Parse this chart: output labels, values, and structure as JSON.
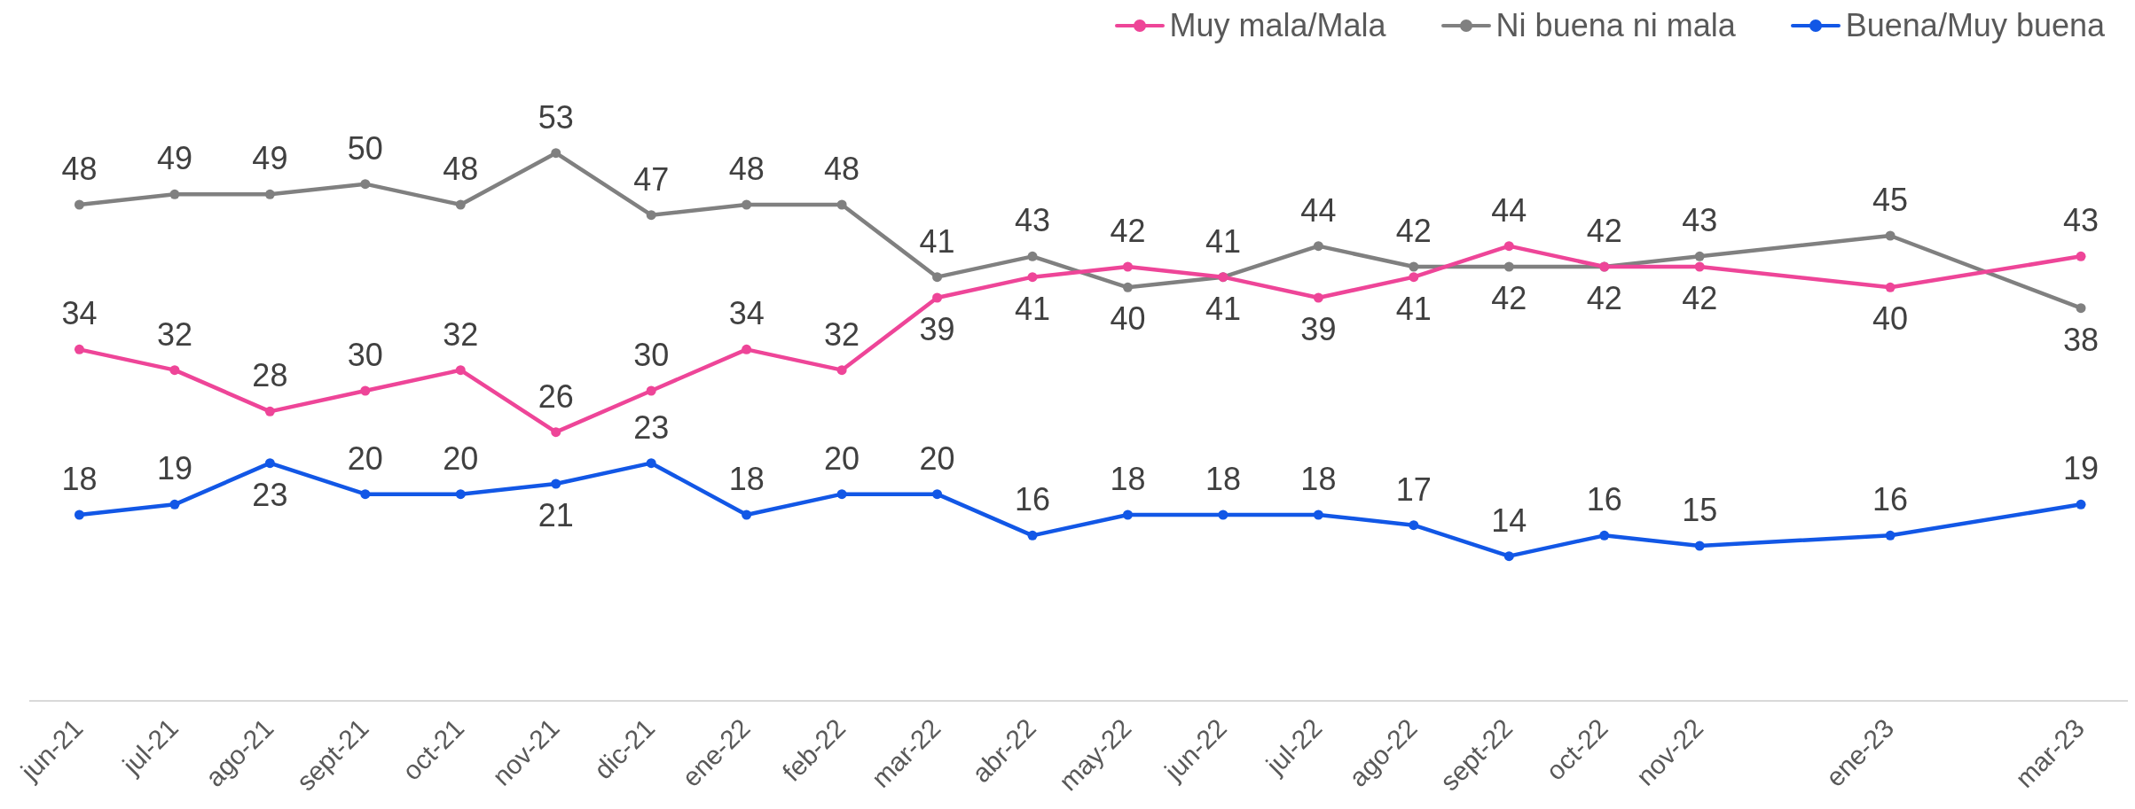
{
  "chart_data": {
    "type": "line",
    "x": [
      "2021-06",
      "2021-07",
      "2021-08",
      "2021-09",
      "2021-10",
      "2021-11",
      "2021-12",
      "2022-01",
      "2022-02",
      "2022-03",
      "2022-04",
      "2022-05",
      "2022-06",
      "2022-07",
      "2022-08",
      "2022-09",
      "2022-10",
      "2022-11",
      "2023-01",
      "2023-03"
    ],
    "xlim": [
      "2021-05-16",
      "2023-03-16"
    ],
    "xticks": [
      {
        "value": "2021-06",
        "label": "jun-21"
      },
      {
        "value": "2021-07",
        "label": "jul-21"
      },
      {
        "value": "2021-08",
        "label": "ago-21"
      },
      {
        "value": "2021-09",
        "label": "sept-21"
      },
      {
        "value": "2021-10",
        "label": "oct-21"
      },
      {
        "value": "2021-11",
        "label": "nov-21"
      },
      {
        "value": "2021-12",
        "label": "dic-21"
      },
      {
        "value": "2022-01",
        "label": "ene-22"
      },
      {
        "value": "2022-02",
        "label": "feb-22"
      },
      {
        "value": "2022-03",
        "label": "mar-22"
      },
      {
        "value": "2022-04",
        "label": "abr-22"
      },
      {
        "value": "2022-05",
        "label": "may-22"
      },
      {
        "value": "2022-06",
        "label": "jun-22"
      },
      {
        "value": "2022-07",
        "label": "jul-22"
      },
      {
        "value": "2022-08",
        "label": "ago-22"
      },
      {
        "value": "2022-09",
        "label": "sept-22"
      },
      {
        "value": "2022-10",
        "label": "oct-22"
      },
      {
        "value": "2022-11",
        "label": "nov-22"
      },
      {
        "value": "2023-01",
        "label": "ene-23"
      },
      {
        "value": "2023-03",
        "label": "mar-23"
      }
    ],
    "series": [
      {
        "name": "Muy mala/Mala",
        "color": "#ee4598",
        "values": [
          34,
          32,
          28,
          30,
          32,
          26,
          30,
          34,
          32,
          39,
          41,
          42,
          41,
          39,
          41,
          44,
          42,
          42,
          40,
          43
        ]
      },
      {
        "name": "Ni buena ni mala",
        "color": "#808080",
        "values": [
          48,
          49,
          49,
          50,
          48,
          53,
          47,
          48,
          48,
          41,
          43,
          40,
          41,
          44,
          42,
          42,
          42,
          43,
          45,
          38
        ]
      },
      {
        "name": "Buena/Muy buena",
        "color": "#1257e6",
        "values": [
          18,
          19,
          23,
          20,
          20,
          21,
          23,
          18,
          20,
          20,
          16,
          18,
          18,
          18,
          17,
          14,
          16,
          15,
          16,
          19
        ]
      }
    ],
    "data_labels": true,
    "legend": "top right",
    "marker": "circle",
    "line_style": "solid"
  }
}
